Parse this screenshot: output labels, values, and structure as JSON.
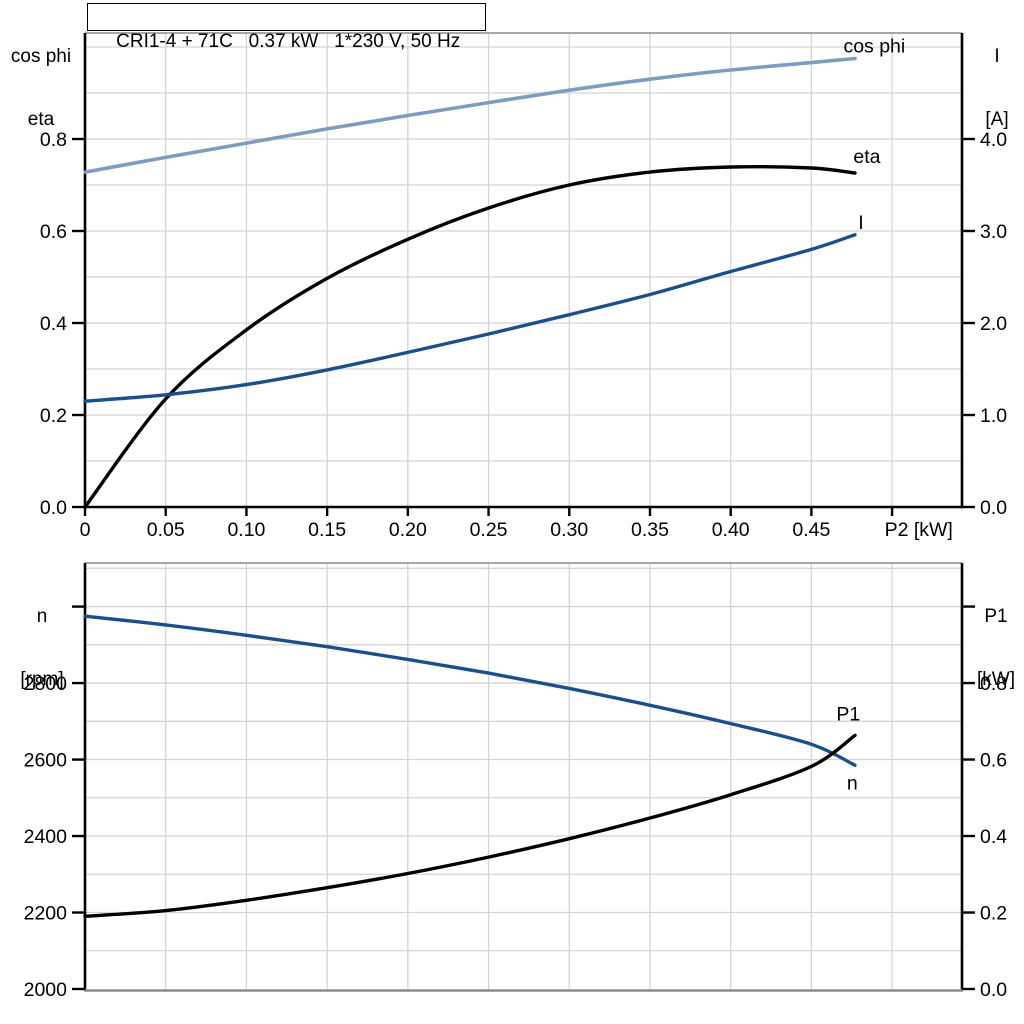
{
  "title_box": {
    "text": "CRI1-4 + 71C   0.37 kW   1*230 V, 50 Hz"
  },
  "colors": {
    "black": "#000000",
    "dark_blue": "#1a4f8a",
    "light_blue": "#7d9cc0",
    "grid": "#d4d4d4",
    "frame_gray": "#8c8c8c",
    "background": "#ffffff"
  },
  "chart_data": [
    {
      "type": "line",
      "title": "CRI1-4 + 71C   0.37 kW   1*230 V, 50 Hz",
      "x_axis": {
        "label": "P2 [kW]",
        "range": [
          0,
          0.5433
        ],
        "tick_values": [
          0,
          0.05,
          0.1,
          0.15,
          0.2,
          0.25,
          0.3,
          0.35,
          0.4,
          0.45
        ],
        "tick_labels": [
          "0",
          "0.05",
          "0.10",
          "0.15",
          "0.20",
          "0.25",
          "0.30",
          "0.35",
          "0.40",
          "0.45"
        ],
        "unlabeled_tick_values": [
          0.5
        ],
        "grid": {
          "min": 0.05,
          "max": 0.5,
          "step": 0.05
        }
      },
      "left_axis": {
        "header_top": "cos phi",
        "header_bottom": "eta",
        "range": [
          0,
          1.0304
        ],
        "tick_values": [
          0.0,
          0.2,
          0.4,
          0.6,
          0.8
        ],
        "tick_labels": [
          "0.0",
          "0.2",
          "0.4",
          "0.6",
          "0.8"
        ],
        "unlabeled_tick_values": []
      },
      "right_axis": {
        "header_top": "I",
        "header_bottom": "[A]",
        "range": [
          0,
          5.152
        ],
        "tick_values": [
          0.0,
          1.0,
          2.0,
          3.0,
          4.0
        ],
        "tick_labels": [
          "0.0",
          "1.0",
          "2.0",
          "3.0",
          "4.0"
        ],
        "unlabeled_tick_values": []
      },
      "grid_y": {
        "axis": "left",
        "min": 0.1,
        "max": 1.0,
        "step": 0.1
      },
      "x": [
        0,
        0.05,
        0.1,
        0.15,
        0.2,
        0.25,
        0.3,
        0.35,
        0.4,
        0.45,
        0.477
      ],
      "series": [
        {
          "name": "cos phi",
          "axis": "left",
          "color": "light_blue",
          "width": 3.6,
          "values": [
            0.728,
            0.76,
            0.791,
            0.822,
            0.851,
            0.879,
            0.906,
            0.93,
            0.95,
            0.966,
            0.975
          ],
          "label": {
            "x": 0.489,
            "v": 1.003,
            "anchor": "middle"
          }
        },
        {
          "name": "eta",
          "axis": "left",
          "color": "black",
          "width": 3.4,
          "values": [
            0.0,
            0.235,
            0.385,
            0.497,
            0.582,
            0.65,
            0.7,
            0.728,
            0.739,
            0.737,
            0.726
          ],
          "label": {
            "x": 0.476,
            "v": 0.763,
            "anchor": "start"
          }
        },
        {
          "name": "I",
          "axis": "right",
          "color": "dark_blue",
          "width": 3.4,
          "values": [
            1.15,
            1.22,
            1.33,
            1.49,
            1.68,
            1.88,
            2.09,
            2.31,
            2.56,
            2.8,
            2.96
          ],
          "label": {
            "x": 0.479,
            "v": 3.1,
            "anchor": "start"
          }
        }
      ]
    },
    {
      "type": "line",
      "title": "",
      "x_axis": {
        "label": "",
        "range": [
          0,
          0.5433
        ],
        "tick_values": [],
        "tick_labels": [],
        "unlabeled_tick_values": [],
        "grid": {
          "min": 0.05,
          "max": 0.5,
          "step": 0.05
        }
      },
      "left_axis": {
        "header_top": "n",
        "header_bottom": "[rpm]",
        "range": [
          2000,
          3114
        ],
        "tick_values": [
          2000,
          2200,
          2400,
          2600,
          2800
        ],
        "tick_labels": [
          "2000",
          "2200",
          "2400",
          "2600",
          "2800"
        ],
        "unlabeled_tick_values": [
          3000
        ]
      },
      "right_axis": {
        "header_top": "P1",
        "header_bottom": "[kW]",
        "range": [
          0,
          1.1139
        ],
        "tick_values": [
          0.0,
          0.2,
          0.4,
          0.6,
          0.8
        ],
        "tick_labels": [
          "0.0",
          "0.2",
          "0.4",
          "0.6",
          "0.8"
        ],
        "unlabeled_tick_values": [
          1.0
        ]
      },
      "grid_y": {
        "axis": "right",
        "min": 0.1,
        "max": 1.1,
        "step": 0.1
      },
      "x": [
        0,
        0.05,
        0.1,
        0.15,
        0.2,
        0.25,
        0.3,
        0.35,
        0.4,
        0.45,
        0.477
      ],
      "series": [
        {
          "name": "n",
          "axis": "left",
          "color": "dark_blue",
          "width": 3.4,
          "values": [
            2975,
            2952,
            2925,
            2895,
            2862,
            2826,
            2786,
            2742,
            2694,
            2640,
            2585
          ],
          "label": {
            "x": 0.472,
            "v": 2540,
            "anchor": "start"
          }
        },
        {
          "name": "P1",
          "axis": "right",
          "color": "black",
          "width": 3.4,
          "values": [
            0.19,
            0.205,
            0.232,
            0.265,
            0.302,
            0.345,
            0.393,
            0.447,
            0.508,
            0.582,
            0.663
          ],
          "label": {
            "x": 0.4655,
            "v": 0.72,
            "anchor": "start"
          }
        }
      ]
    }
  ]
}
